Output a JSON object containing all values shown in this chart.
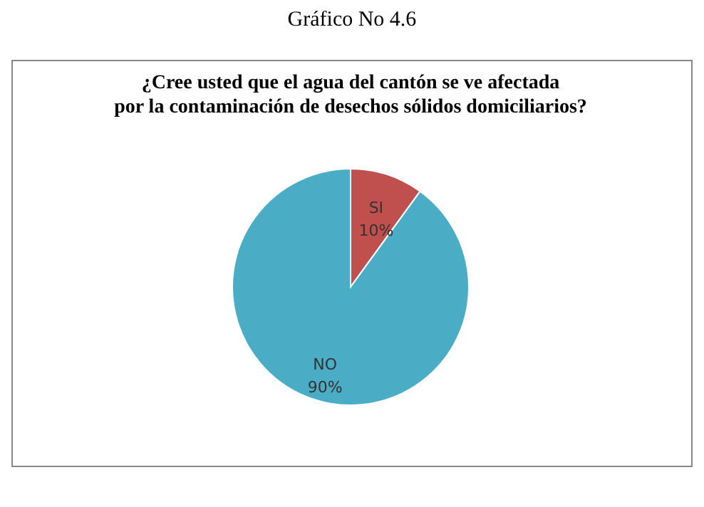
{
  "chart_data": {
    "type": "pie",
    "title": "Gráfico No 4.6",
    "subtitle": "¿Cree usted que el agua del cantón se ve afectada por la contaminación de desechos sólidos domiciliarios?",
    "categories": [
      "SI",
      "NO"
    ],
    "values": [
      10,
      90
    ],
    "value_labels": [
      "10%",
      "90%"
    ],
    "colors": [
      "#c0504d",
      "#4bacc6"
    ],
    "legend": false
  }
}
